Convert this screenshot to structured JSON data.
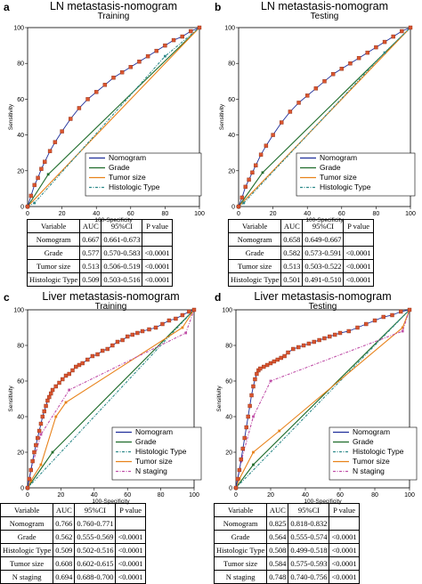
{
  "panels": [
    {
      "id": "a",
      "label": "a",
      "title": "LN metastasis-nomogram",
      "subtitle": "Training",
      "xlabel": "100-Specificity",
      "ylabel": "Sensitivity",
      "legend": [
        "Nomogram",
        "Grade",
        "Tumor size",
        "Histologic Type"
      ],
      "table": {
        "headers": [
          "Variable",
          "AUC",
          "95%CI",
          "P value"
        ],
        "rows": [
          [
            "Nomogram",
            "0.667",
            "0.661-0.673",
            ""
          ],
          [
            "Grade",
            "0.577",
            "0.570-0.583",
            "<0.0001"
          ],
          [
            "Tumor size",
            "0.513",
            "0.506-0.519",
            "<0.0001"
          ],
          [
            "Histologic Type",
            "0.509",
            "0.503-0.516",
            "<0.0001"
          ]
        ]
      }
    },
    {
      "id": "b",
      "label": "b",
      "title": "LN metastasis-nomogram",
      "subtitle": "Testing",
      "xlabel": "100-Specificity",
      "ylabel": "Sensitivity",
      "legend": [
        "Nomogram",
        "Grade",
        "Tumor size",
        "Histologic Type"
      ],
      "table": {
        "headers": [
          "Variable",
          "AUC",
          "95%CI",
          "P value"
        ],
        "rows": [
          [
            "Nomogram",
            "0.658",
            "0.649-0.667",
            ""
          ],
          [
            "Grade",
            "0.582",
            "0.573-0.591",
            "<0.0001"
          ],
          [
            "Tumor size",
            "0.513",
            "0.503-0.522",
            "<0.0001"
          ],
          [
            "Histologic Type",
            "0.501",
            "0.491-0.510",
            "<0.0001"
          ]
        ]
      }
    },
    {
      "id": "c",
      "label": "c",
      "title": "Liver metastasis-nomogram",
      "subtitle": "Training",
      "xlabel": "100-Specificity",
      "ylabel": "Sensitivity",
      "legend": [
        "Nomogram",
        "Grade",
        "Histologic Type",
        "Tumor size",
        "N staging"
      ],
      "table": {
        "headers": [
          "Variable",
          "AUC",
          "95%CI",
          "P value"
        ],
        "rows": [
          [
            "Nomogram",
            "0.766",
            "0.760-0.771",
            ""
          ],
          [
            "Grade",
            "0.562",
            "0.555-0.569",
            "<0.0001"
          ],
          [
            "Histologic Type",
            "0.509",
            "0.502-0.516",
            "<0.0001"
          ],
          [
            "Tumor size",
            "0.608",
            "0.602-0.615",
            "<0.0001"
          ],
          [
            "N staging",
            "0.694",
            "0.688-0.700",
            "<0.0001"
          ]
        ]
      }
    },
    {
      "id": "d",
      "label": "d",
      "title": "Liver metastasis-nomogram",
      "subtitle": "Testing",
      "xlabel": "100-Specificity",
      "ylabel": "Sensitivity",
      "legend": [
        "Nomogram",
        "Grade",
        "Histologic Type",
        "Tumor size",
        "N staging"
      ],
      "table": {
        "headers": [
          "Variable",
          "AUC",
          "95%CI",
          "P value"
        ],
        "rows": [
          [
            "Nomogram",
            "0.825",
            "0.818-0.832",
            ""
          ],
          [
            "Grade",
            "0.564",
            "0.555-0.574",
            "<0.0001"
          ],
          [
            "Histologic Type",
            "0.508",
            "0.499-0.518",
            "<0.0001"
          ],
          [
            "Tumor size",
            "0.584",
            "0.575-0.593",
            "<0.0001"
          ],
          [
            "N staging",
            "0.748",
            "0.740-0.756",
            "<0.0001"
          ]
        ]
      }
    }
  ],
  "colors": {
    "Nomogram": "#1f2f9a",
    "Grade": "#1e6b2a",
    "Tumor size": "#e8821a",
    "Histologic Type": "#2e8a8a",
    "N staging": "#c04fa8",
    "marker": "#d9552f"
  },
  "chart_data": [
    {
      "type": "line",
      "panel": "a",
      "xlim": [
        0,
        100
      ],
      "ylim": [
        0,
        100
      ],
      "xticks": [
        0,
        20,
        40,
        60,
        80,
        100
      ],
      "yticks": [
        0,
        20,
        40,
        60,
        80,
        100
      ],
      "series": [
        {
          "name": "Nomogram",
          "x": [
            0,
            2,
            4,
            6,
            8,
            10,
            13,
            16,
            20,
            25,
            30,
            35,
            40,
            45,
            50,
            55,
            60,
            65,
            70,
            75,
            80,
            85,
            90,
            95,
            100
          ],
          "y": [
            0,
            6,
            12,
            16,
            21,
            25,
            31,
            36,
            42,
            49,
            55,
            60,
            64,
            68,
            72,
            75,
            78,
            81,
            84,
            87,
            90,
            93,
            95,
            98,
            100
          ]
        },
        {
          "name": "Grade",
          "x": [
            0,
            12,
            100
          ],
          "y": [
            0,
            18,
            100
          ]
        },
        {
          "name": "Tumor size",
          "x": [
            0,
            100
          ],
          "y": [
            0,
            100
          ]
        },
        {
          "name": "Histologic Type",
          "x": [
            0,
            4,
            80,
            100
          ],
          "y": [
            0,
            2,
            84,
            100
          ]
        }
      ]
    },
    {
      "type": "line",
      "panel": "b",
      "xlim": [
        0,
        100
      ],
      "ylim": [
        0,
        100
      ],
      "xticks": [
        0,
        20,
        40,
        60,
        80,
        100
      ],
      "yticks": [
        0,
        20,
        40,
        60,
        80,
        100
      ],
      "series": [
        {
          "name": "Nomogram",
          "x": [
            0,
            2,
            4,
            6,
            8,
            10,
            13,
            16,
            20,
            25,
            30,
            35,
            40,
            45,
            50,
            55,
            60,
            65,
            70,
            75,
            80,
            85,
            90,
            95,
            100
          ],
          "y": [
            0,
            5,
            11,
            15,
            19,
            23,
            29,
            34,
            40,
            47,
            53,
            58,
            62,
            66,
            70,
            74,
            77,
            80,
            83,
            86,
            89,
            92,
            95,
            98,
            100
          ]
        },
        {
          "name": "Grade",
          "x": [
            0,
            14,
            100
          ],
          "y": [
            0,
            19,
            100
          ]
        },
        {
          "name": "Tumor size",
          "x": [
            0,
            100
          ],
          "y": [
            0,
            100
          ]
        },
        {
          "name": "Histologic Type",
          "x": [
            0,
            3,
            85,
            100
          ],
          "y": [
            0,
            2,
            86,
            100
          ]
        }
      ]
    },
    {
      "type": "line",
      "panel": "c",
      "xlim": [
        0,
        100
      ],
      "ylim": [
        0,
        100
      ],
      "xticks": [
        0,
        20,
        40,
        60,
        80,
        100
      ],
      "yticks": [
        0,
        20,
        40,
        60,
        80,
        100
      ],
      "series": [
        {
          "name": "Nomogram",
          "x": [
            0,
            1,
            2,
            3,
            4,
            5,
            6,
            7,
            8,
            9,
            10,
            11,
            12,
            13,
            14,
            15,
            17,
            19,
            21,
            23,
            25,
            27,
            29,
            31,
            33,
            36,
            39,
            42,
            45,
            48,
            51,
            54,
            57,
            60,
            63,
            66,
            69,
            73,
            77,
            81,
            85,
            89,
            93,
            97,
            100
          ],
          "y": [
            0,
            5,
            10,
            15,
            20,
            24,
            28,
            32,
            36,
            40,
            43,
            46,
            49,
            51,
            53,
            55,
            57,
            59,
            61,
            63,
            64,
            66,
            68,
            69,
            70,
            72,
            74,
            75,
            77,
            78,
            80,
            82,
            83,
            85,
            86,
            87,
            88,
            89,
            90,
            92,
            94,
            95,
            97,
            99,
            100
          ]
        },
        {
          "name": "Grade",
          "x": [
            0,
            15,
            100
          ],
          "y": [
            0,
            20,
            100
          ]
        },
        {
          "name": "Histologic Type",
          "x": [
            0,
            100
          ],
          "y": [
            0,
            100
          ]
        },
        {
          "name": "Tumor size",
          "x": [
            0,
            2,
            8,
            17,
            23,
            93,
            100
          ],
          "y": [
            0,
            4,
            13,
            40,
            48,
            90,
            100
          ]
        },
        {
          "name": "N staging",
          "x": [
            0,
            2,
            8,
            25,
            95,
            100
          ],
          "y": [
            0,
            10,
            30,
            55,
            87,
            100
          ]
        }
      ]
    },
    {
      "type": "line",
      "panel": "d",
      "xlim": [
        0,
        100
      ],
      "ylim": [
        0,
        100
      ],
      "xticks": [
        0,
        20,
        40,
        60,
        80,
        100
      ],
      "yticks": [
        0,
        20,
        40,
        60,
        80,
        100
      ],
      "series": [
        {
          "name": "Nomogram",
          "x": [
            0,
            1,
            2,
            3,
            4,
            5,
            6,
            7,
            8,
            9,
            10,
            11,
            12,
            13,
            14,
            16,
            18,
            20,
            22,
            24,
            26,
            28,
            30,
            33,
            36,
            39,
            42,
            45,
            48,
            51,
            54,
            57,
            60,
            65,
            70,
            75,
            80,
            85,
            90,
            95,
            100
          ],
          "y": [
            0,
            5,
            10,
            16,
            22,
            28,
            34,
            40,
            46,
            52,
            57,
            61,
            64,
            66,
            67,
            68,
            69,
            70,
            71,
            72,
            73,
            74,
            76,
            78,
            79,
            80,
            81,
            82,
            83,
            84,
            85,
            86,
            87,
            88,
            90,
            92,
            94,
            96,
            97,
            99,
            100
          ]
        },
        {
          "name": "Grade",
          "x": [
            0,
            10,
            100
          ],
          "y": [
            0,
            13,
            100
          ]
        },
        {
          "name": "Histologic Type",
          "x": [
            0,
            100
          ],
          "y": [
            0,
            100
          ]
        },
        {
          "name": "Tumor size",
          "x": [
            0,
            2,
            10,
            25,
            96,
            100
          ],
          "y": [
            0,
            5,
            20,
            32,
            90,
            100
          ]
        },
        {
          "name": "N staging",
          "x": [
            0,
            3,
            10,
            20,
            96,
            100
          ],
          "y": [
            0,
            15,
            40,
            60,
            88,
            100
          ]
        }
      ]
    }
  ]
}
